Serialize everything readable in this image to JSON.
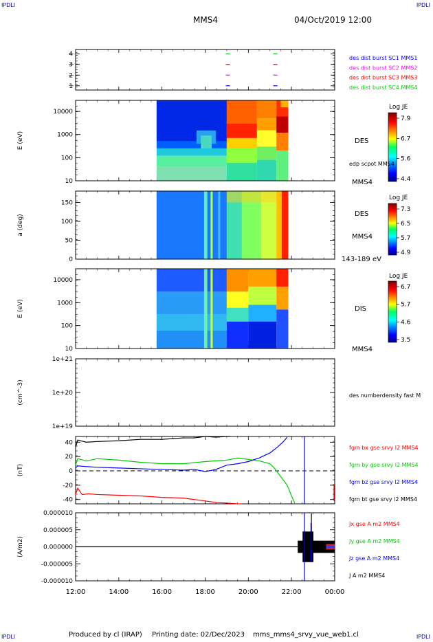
{
  "corners": {
    "tl": "IPDLI",
    "tr": "IPDLI",
    "bl": "IPDLI",
    "br": "IPDLI"
  },
  "header": {
    "spacecraft": "MMS4",
    "date": "04/Oct/2019 12:00"
  },
  "footer": {
    "produced_by": "Produced by cl (IRAP)",
    "printing_date": "Printing date: 02/Dec/2023",
    "filename": "mms_mms4_srvy_vue_web1.cl"
  },
  "colors": {
    "blue": "#0000ff",
    "magenta": "#ff00ff",
    "red": "#ff0000",
    "green": "#00cc00",
    "black": "#000000"
  },
  "chart_data": [
    {
      "type": "scatter",
      "name_panel": "burst-availability",
      "yticks": [
        "1",
        "2",
        "3",
        "4"
      ],
      "ylim": [
        0.6,
        4.4
      ],
      "legend": [
        {
          "text": "des dist burst SC1 MMS1",
          "color": "#0000ff"
        },
        {
          "text": "des dist burst SC2 MMS2",
          "color": "#ff00ff"
        },
        {
          "text": "des dist burst SC3 MMS3",
          "color": "#ff0000"
        },
        {
          "text": "des dist burst SC4 MMS4",
          "color": "#00cc00"
        }
      ],
      "series": [
        {
          "level": 1,
          "color": "#0000ff",
          "x": [
            19.05,
            21.25
          ]
        },
        {
          "level": 2,
          "color": "#ff00ff",
          "x": [
            19.05,
            21.25
          ]
        },
        {
          "level": 3,
          "color": "#ff0000",
          "x": [
            19.05,
            21.25
          ]
        },
        {
          "level": 4,
          "color": "#00cc00",
          "x": [
            19.05,
            21.25
          ]
        }
      ]
    },
    {
      "type": "heatmap",
      "name_panel": "des-energy",
      "ylabel": "E (eV)",
      "yticks": [
        "10",
        "100",
        "1000",
        "10000"
      ],
      "log_y": true,
      "ylim": [
        10,
        30000
      ],
      "label": "DES",
      "sublabel": "edp scpot MMS4",
      "bottom_label": "MMS4",
      "colorbar": {
        "title": "Log JE",
        "ticks": [
          "7.9",
          "6.7",
          "5.6",
          "4.4"
        ],
        "range": [
          4.4,
          7.9
        ]
      },
      "data_start": 15.75,
      "data_end": 21.85
    },
    {
      "type": "heatmap",
      "name_panel": "des-pitch",
      "ylabel": "a (deg)",
      "yticks": [
        "0",
        "50",
        "100",
        "150"
      ],
      "ylim": [
        0,
        180
      ],
      "label": "DES",
      "sublabel": "MMS4",
      "bottom_label": "143-189 eV",
      "colorbar": {
        "title": "Log JE",
        "ticks": [
          "7.3",
          "6.5",
          "5.7",
          "4.9"
        ],
        "range": [
          4.9,
          7.3
        ]
      },
      "data_start": 15.75,
      "data_end": 21.85
    },
    {
      "type": "heatmap",
      "name_panel": "dis-energy",
      "ylabel": "E (eV)",
      "yticks": [
        "10",
        "100",
        "1000",
        "10000"
      ],
      "log_y": true,
      "ylim": [
        10,
        30000
      ],
      "label": "DIS",
      "bottom_label": "MMS4",
      "colorbar": {
        "title": "Log JE",
        "ticks": [
          "6.7",
          "5.7",
          "4.6",
          "3.5"
        ],
        "range": [
          3.5,
          6.7
        ]
      },
      "data_start": 15.75,
      "data_end": 21.85
    },
    {
      "type": "line",
      "name_panel": "density",
      "ylabel": "(cm^-3)",
      "yticks": [
        "1e+19",
        "1e+20",
        "1e+21"
      ],
      "log_y": true,
      "ylim": [
        1e+19,
        1e+21
      ],
      "legend": [
        {
          "text": "des numberdensity fast M",
          "color": "#000000"
        }
      ],
      "series": []
    },
    {
      "type": "line",
      "name_panel": "fgm",
      "ylabel": "(nT)",
      "yticks": [
        "-40",
        "-20",
        "0",
        "20",
        "40"
      ],
      "ylim": [
        -46,
        48
      ],
      "legend": [
        {
          "text": "fgm bx gse srvy l2 MMS4",
          "color": "#ff0000"
        },
        {
          "text": "fgm by gse srvy l2 MMS4",
          "color": "#00cc00"
        },
        {
          "text": "fgm bz gse srvy l2 MMS4",
          "color": "#0000ff"
        },
        {
          "text": "fgm bt gse srvy l2 MMS4",
          "color": "#000000"
        }
      ],
      "series": [
        {
          "name": "fgm bt gse srvy l2 MMS4",
          "color": "#000000",
          "x": [
            12.0,
            12.1,
            12.5,
            13.0,
            14.0,
            15.0,
            16.0,
            17.0,
            17.5,
            18.0,
            18.5,
            19.0,
            19.15
          ],
          "y": [
            33,
            43,
            40,
            41,
            42,
            44,
            44,
            46,
            46,
            48,
            47,
            48,
            48
          ]
        },
        {
          "name": "fgm bx gse srvy l2 MMS4",
          "color": "#ff0000",
          "x": [
            12.0,
            12.1,
            12.3,
            12.6,
            13.0,
            14.0,
            15.0,
            16.0,
            17.0,
            17.5,
            18.0,
            18.5,
            19.0,
            19.5,
            19.7
          ],
          "y": [
            -33,
            -24,
            -33,
            -32,
            -33,
            -34,
            -35,
            -37,
            -38,
            -40,
            -42,
            -44,
            -45,
            -46,
            -46
          ]
        },
        {
          "name": "fgm by gse srvy l2 MMS4",
          "color": "#00cc00",
          "x": [
            12.0,
            12.1,
            12.5,
            13.0,
            14.0,
            15.0,
            16.0,
            17.0,
            18.0,
            19.0,
            19.5,
            20.0,
            20.5,
            21.0,
            21.2,
            21.5,
            21.8,
            22.0,
            22.15
          ],
          "y": [
            8,
            17,
            14,
            17,
            15,
            12,
            10,
            10,
            13,
            15,
            18,
            16,
            14,
            10,
            4,
            -8,
            -20,
            -35,
            -45
          ]
        },
        {
          "name": "fgm bz gse srvy l2 MMS4",
          "color": "#0000ff",
          "x": [
            12.0,
            12.1,
            12.5,
            13.0,
            14.0,
            15.0,
            16.0,
            17.0,
            17.5,
            18.0,
            18.5,
            19.0,
            19.5,
            20.0,
            20.5,
            21.0,
            21.3,
            21.6,
            21.8
          ],
          "y": [
            4,
            7,
            6,
            5,
            4,
            3,
            2,
            1,
            2,
            -1,
            2,
            8,
            10,
            13,
            18,
            25,
            32,
            40,
            47
          ]
        }
      ],
      "zero_line": 0
    },
    {
      "type": "line",
      "name_panel": "current",
      "ylabel": "(A/m2)",
      "yticks": [
        "-0.000010",
        "-0.000005",
        "0.000000",
        "0.000005",
        "0.000010"
      ],
      "ylim": [
        -1e-05,
        1e-05
      ],
      "legend": [
        {
          "text": "Jx gse A m2 MMS4",
          "color": "#ff0000"
        },
        {
          "text": "Jy gse A m2 MMS4",
          "color": "#00cc00"
        },
        {
          "text": "Jz gse A m2 MMS4",
          "color": "#0000ff"
        },
        {
          "text": "J A m2 MMS4",
          "color": "#000000"
        }
      ],
      "series": []
    }
  ],
  "xaxis": {
    "ticks": [
      "12:00",
      "14:00",
      "16:00",
      "18:00",
      "20:00",
      "22:00",
      "00:00"
    ],
    "range": [
      12,
      24
    ]
  }
}
